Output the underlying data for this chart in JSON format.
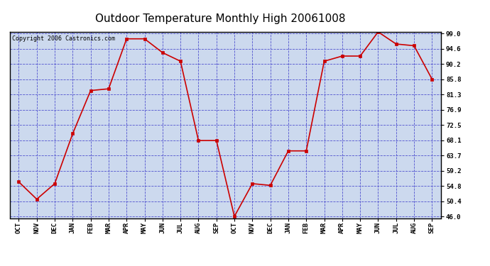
{
  "title": "Outdoor Temperature Monthly High 20061008",
  "copyright_text": "Copyright 2006 Castronics.com",
  "categories": [
    "OCT",
    "NOV",
    "DEC",
    "JAN",
    "FEB",
    "MAR",
    "APR",
    "MAY",
    "JUN",
    "JUL",
    "AUG",
    "SEP",
    "OCT",
    "NOV",
    "DEC",
    "JAN",
    "FEB",
    "MAR",
    "APR",
    "MAY",
    "JUN",
    "JUL",
    "AUG",
    "SEP"
  ],
  "values": [
    56.0,
    51.0,
    55.5,
    70.0,
    82.5,
    83.0,
    97.5,
    97.5,
    93.5,
    91.0,
    68.0,
    68.0,
    46.0,
    55.5,
    55.0,
    65.0,
    65.0,
    91.0,
    92.5,
    92.5,
    99.5,
    96.0,
    95.5,
    85.8
  ],
  "line_color": "#cc0000",
  "marker_color": "#cc0000",
  "bg_color": "#ccd9ee",
  "title_fontsize": 11,
  "copyright_fontsize": 6,
  "ylim_min": 46.0,
  "ylim_max": 99.0,
  "yticks": [
    46.0,
    50.4,
    54.8,
    59.2,
    63.7,
    68.1,
    72.5,
    76.9,
    81.3,
    85.8,
    90.2,
    94.6,
    99.0
  ],
  "grid_color": "#4444cc",
  "outer_bg": "#ffffff"
}
